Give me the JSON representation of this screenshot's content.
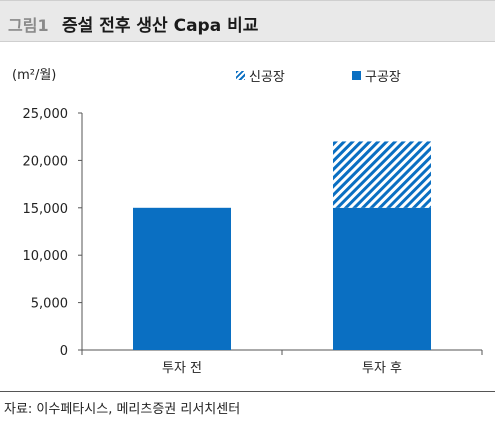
{
  "figure": {
    "label": "그림1",
    "title": "증설 전후 생산 Capa 비교",
    "unit": "(m²/월)",
    "source": "자료: 이수페타시스, 메리츠증권 리서치센터"
  },
  "colors": {
    "old": "#0a6fc2",
    "new_stripe": "#0a6fc2"
  },
  "chart_data": {
    "type": "bar",
    "stacked": true,
    "categories": [
      "투자 전",
      "투자 후"
    ],
    "series": [
      {
        "name": "구공장",
        "values": [
          15000,
          15000
        ]
      },
      {
        "name": "신공장",
        "values": [
          0,
          7000
        ]
      }
    ],
    "y_ticks": [
      "0",
      "5,000",
      "10,000",
      "15,000",
      "20,000",
      "25,000"
    ],
    "ylim": [
      0,
      25000
    ],
    "grid": false,
    "legend": "top-right"
  }
}
